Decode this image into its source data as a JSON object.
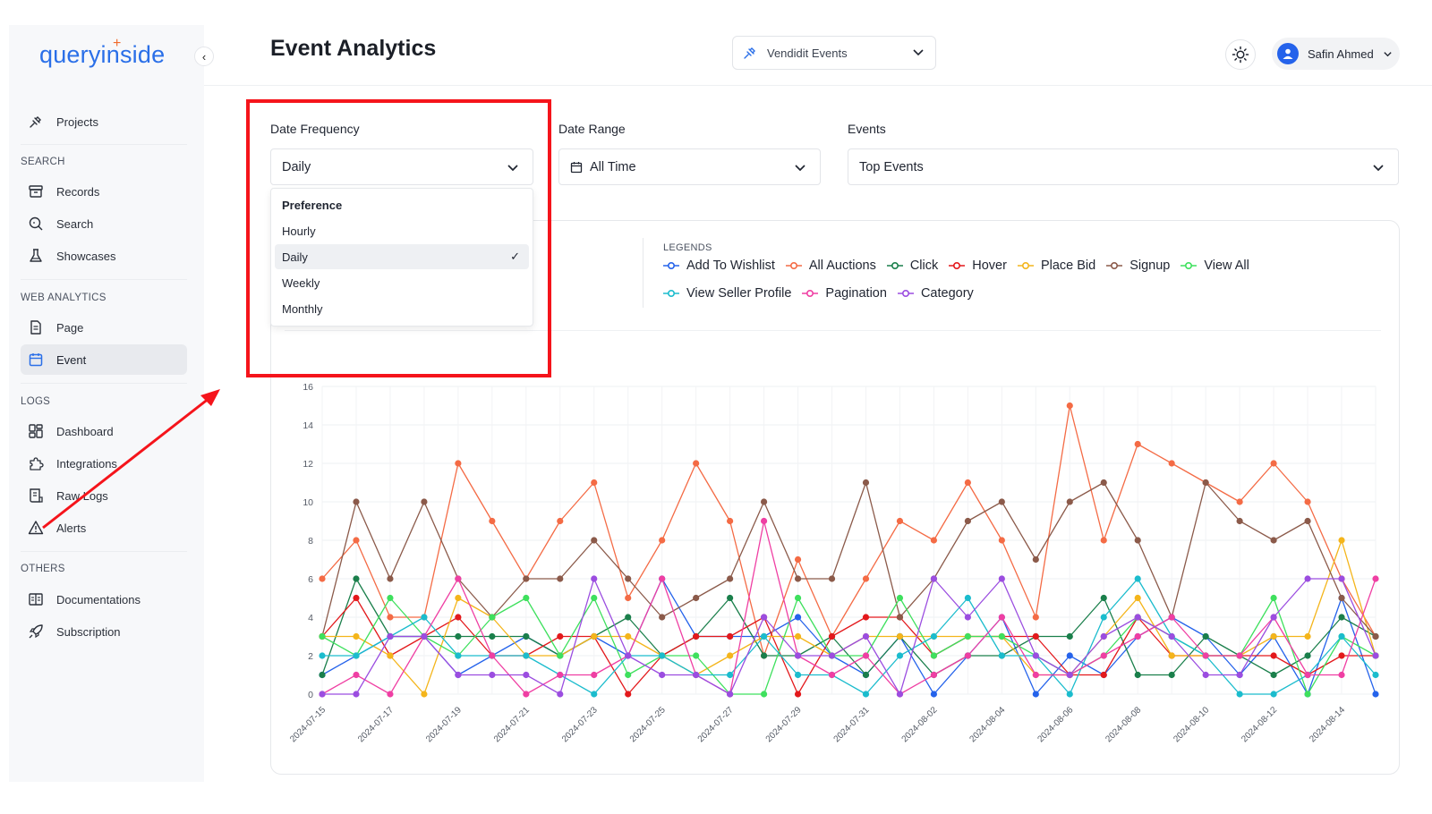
{
  "app": {
    "logo": "queryinside",
    "page_title": "Event Analytics"
  },
  "sidebar": {
    "top_item": {
      "label": "Projects",
      "icon": "plug-icon"
    },
    "sections": [
      {
        "title": "SEARCH",
        "items": [
          {
            "label": "Records",
            "icon": "archive-icon"
          },
          {
            "label": "Search",
            "icon": "search-icon"
          },
          {
            "label": "Showcases",
            "icon": "flask-icon"
          }
        ]
      },
      {
        "title": "WEB ANALYTICS",
        "items": [
          {
            "label": "Page",
            "icon": "file-icon"
          },
          {
            "label": "Event",
            "icon": "calendar-icon",
            "active": true
          }
        ]
      },
      {
        "title": "LOGS",
        "items": [
          {
            "label": "Dashboard",
            "icon": "dashboard-icon"
          },
          {
            "label": "Integrations",
            "icon": "puzzle-icon"
          },
          {
            "label": "Raw Logs",
            "icon": "logs-icon"
          },
          {
            "label": "Alerts",
            "icon": "alert-icon"
          }
        ]
      },
      {
        "title": "OTHERS",
        "items": [
          {
            "label": "Documentations",
            "icon": "book-icon"
          },
          {
            "label": "Subscription",
            "icon": "rocket-icon"
          }
        ]
      }
    ]
  },
  "header": {
    "project_select": "Vendidit Events",
    "user_name": "Safin Ahmed"
  },
  "filters": {
    "date_frequency": {
      "label": "Date Frequency",
      "value": "Daily"
    },
    "date_range": {
      "label": "Date Range",
      "value": "All Time"
    },
    "events": {
      "label": "Events",
      "value": "Top Events"
    }
  },
  "dropdown": {
    "options": [
      "Preference",
      "Hourly",
      "Daily",
      "Weekly",
      "Monthly"
    ],
    "selected": "Daily",
    "check": "✓"
  },
  "legend_title": "LEGENDS",
  "colors": {
    "accent": "#2a6fe8",
    "highlight": "#f5141b"
  },
  "chart_data": {
    "type": "line",
    "x": [
      "2024-07-15",
      "2024-07-16",
      "2024-07-17",
      "2024-07-18",
      "2024-07-19",
      "2024-07-20",
      "2024-07-21",
      "2024-07-22",
      "2024-07-23",
      "2024-07-24",
      "2024-07-25",
      "2024-07-26",
      "2024-07-27",
      "2024-07-28",
      "2024-07-29",
      "2024-07-30",
      "2024-07-31",
      "2024-08-01",
      "2024-08-02",
      "2024-08-03",
      "2024-08-04",
      "2024-08-05",
      "2024-08-06",
      "2024-08-07",
      "2024-08-08",
      "2024-08-09",
      "2024-08-10",
      "2024-08-11",
      "2024-08-12",
      "2024-08-13",
      "2024-08-14",
      "2024-08-15"
    ],
    "x_tick_labels": [
      "2024-07-15",
      "2024-07-17",
      "2024-07-19",
      "2024-07-21",
      "2024-07-23",
      "2024-07-25",
      "2024-07-27",
      "2024-07-29",
      "2024-07-31",
      "2024-08-02",
      "2024-08-04",
      "2024-08-06",
      "2024-08-08",
      "2024-08-10",
      "2024-08-12",
      "2024-08-14"
    ],
    "y_ticks": [
      0,
      2,
      4,
      6,
      8,
      10,
      12,
      14,
      16
    ],
    "ylim": [
      0,
      16
    ],
    "grid": true,
    "series": [
      {
        "name": "Add To Wishlist",
        "color": "#2563eb",
        "values": [
          1,
          2,
          3,
          3,
          1,
          2,
          3,
          2,
          3,
          2,
          6,
          3,
          3,
          3,
          4,
          2,
          1,
          3,
          0,
          2,
          4,
          0,
          2,
          1,
          3,
          4,
          3,
          1,
          3,
          0,
          5,
          0
        ]
      },
      {
        "name": "All Auctions",
        "color": "#f46b45",
        "values": [
          6,
          8,
          4,
          4,
          12,
          9,
          6,
          9,
          11,
          5,
          8,
          12,
          9,
          2,
          7,
          3,
          6,
          9,
          8,
          11,
          8,
          4,
          15,
          8,
          13,
          12,
          11,
          10,
          12,
          10,
          6,
          3
        ]
      },
      {
        "name": "Click",
        "color": "#1a7f4b",
        "values": [
          1,
          6,
          3,
          3,
          3,
          3,
          3,
          2,
          3,
          4,
          2,
          3,
          5,
          2,
          2,
          3,
          1,
          3,
          1,
          2,
          2,
          3,
          3,
          5,
          1,
          1,
          3,
          2,
          1,
          2,
          4,
          3
        ]
      },
      {
        "name": "Hover",
        "color": "#e3191c",
        "values": [
          3,
          5,
          2,
          3,
          4,
          2,
          2,
          3,
          3,
          0,
          2,
          3,
          3,
          4,
          0,
          3,
          4,
          4,
          2,
          3,
          3,
          3,
          1,
          1,
          4,
          2,
          2,
          2,
          2,
          1,
          2,
          2
        ]
      },
      {
        "name": "Place Bid",
        "color": "#f4b51b",
        "values": [
          3,
          3,
          2,
          0,
          5,
          4,
          2,
          2,
          3,
          3,
          2,
          1,
          2,
          3,
          3,
          2,
          3,
          3,
          3,
          3,
          3,
          1,
          1,
          3,
          5,
          2,
          2,
          2,
          3,
          3,
          8,
          2
        ]
      },
      {
        "name": "Signup",
        "color": "#8b5a4a",
        "values": [
          3,
          10,
          6,
          10,
          6,
          4,
          6,
          6,
          8,
          6,
          4,
          5,
          6,
          10,
          6,
          6,
          11,
          4,
          6,
          9,
          10,
          7,
          10,
          11,
          8,
          4,
          11,
          9,
          8,
          9,
          5,
          3
        ]
      },
      {
        "name": "View All",
        "color": "#3ee05d",
        "values": [
          3,
          2,
          5,
          3,
          2,
          4,
          5,
          2,
          5,
          1,
          2,
          2,
          0,
          0,
          5,
          2,
          2,
          5,
          2,
          3,
          3,
          2,
          1,
          2,
          4,
          3,
          2,
          2,
          5,
          0,
          3,
          2
        ]
      },
      {
        "name": "View Seller Profile",
        "color": "#1bbccd",
        "values": [
          2,
          2,
          3,
          4,
          2,
          2,
          2,
          1,
          0,
          2,
          2,
          1,
          1,
          3,
          1,
          1,
          0,
          2,
          3,
          5,
          2,
          2,
          0,
          4,
          6,
          3,
          2,
          0,
          0,
          1,
          3,
          1
        ]
      },
      {
        "name": "Pagination",
        "color": "#ef3fa3",
        "values": [
          0,
          1,
          0,
          3,
          6,
          2,
          0,
          1,
          1,
          2,
          6,
          1,
          0,
          9,
          2,
          1,
          2,
          0,
          1,
          2,
          4,
          1,
          1,
          2,
          3,
          4,
          2,
          2,
          4,
          1,
          1,
          6
        ]
      },
      {
        "name": "Category",
        "color": "#9b4de0",
        "values": [
          0,
          0,
          3,
          3,
          1,
          1,
          1,
          0,
          6,
          2,
          1,
          1,
          0,
          4,
          2,
          2,
          3,
          0,
          6,
          4,
          6,
          2,
          1,
          3,
          4,
          3,
          1,
          1,
          4,
          6,
          6,
          2
        ]
      }
    ]
  }
}
